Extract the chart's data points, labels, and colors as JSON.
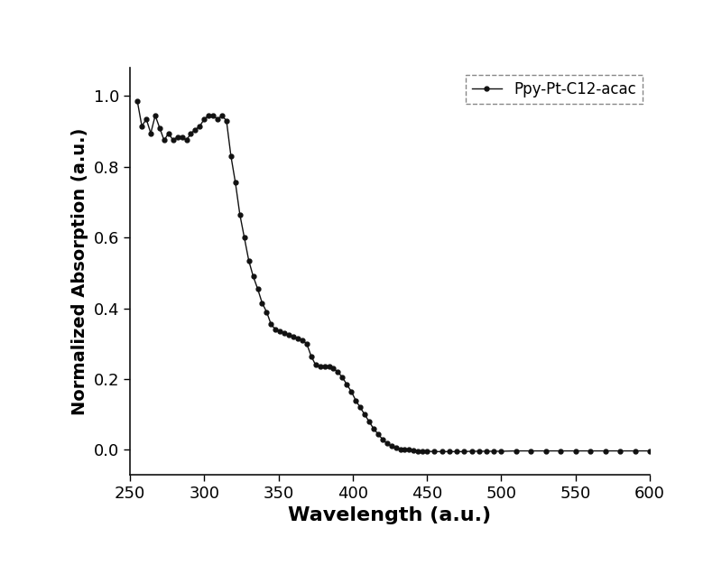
{
  "xlabel": "Wavelength (a.u.)",
  "ylabel": "Normalized Absorption (a.u.)",
  "legend_label": "Ppy-Pt-C12-acac",
  "xlim": [
    250,
    600
  ],
  "ylim": [
    -0.07,
    1.08
  ],
  "xticks": [
    250,
    300,
    350,
    400,
    450,
    500,
    550,
    600
  ],
  "yticks": [
    0.0,
    0.2,
    0.4,
    0.6,
    0.8,
    1.0
  ],
  "line_color": "#111111",
  "marker": "o",
  "markersize": 3.5,
  "linewidth": 1.0,
  "background_color": "#ffffff",
  "xlabel_fontsize": 16,
  "ylabel_fontsize": 14,
  "tick_fontsize": 13,
  "legend_fontsize": 12,
  "wavelengths": [
    255,
    258,
    261,
    264,
    267,
    270,
    273,
    276,
    279,
    282,
    285,
    288,
    291,
    294,
    297,
    300,
    303,
    306,
    309,
    312,
    315,
    318,
    321,
    324,
    327,
    330,
    333,
    336,
    339,
    342,
    345,
    348,
    351,
    354,
    357,
    360,
    363,
    366,
    369,
    372,
    375,
    378,
    381,
    384,
    387,
    390,
    393,
    396,
    399,
    402,
    405,
    408,
    411,
    414,
    417,
    420,
    423,
    426,
    429,
    432,
    435,
    438,
    441,
    444,
    447,
    450,
    455,
    460,
    465,
    470,
    475,
    480,
    485,
    490,
    495,
    500,
    510,
    520,
    530,
    540,
    550,
    560,
    570,
    580,
    590,
    600
  ],
  "absorption": [
    0.985,
    0.915,
    0.935,
    0.895,
    0.945,
    0.91,
    0.875,
    0.895,
    0.875,
    0.885,
    0.885,
    0.875,
    0.895,
    0.905,
    0.915,
    0.935,
    0.945,
    0.945,
    0.935,
    0.945,
    0.93,
    0.83,
    0.755,
    0.665,
    0.6,
    0.535,
    0.49,
    0.455,
    0.415,
    0.39,
    0.355,
    0.34,
    0.335,
    0.33,
    0.325,
    0.32,
    0.315,
    0.31,
    0.3,
    0.265,
    0.24,
    0.235,
    0.235,
    0.235,
    0.23,
    0.22,
    0.205,
    0.185,
    0.165,
    0.14,
    0.12,
    0.1,
    0.08,
    0.06,
    0.045,
    0.03,
    0.018,
    0.01,
    0.005,
    0.002,
    0.001,
    0.0,
    -0.002,
    -0.003,
    -0.004,
    -0.004,
    -0.005,
    -0.005,
    -0.005,
    -0.005,
    -0.005,
    -0.004,
    -0.004,
    -0.004,
    -0.004,
    -0.004,
    -0.003,
    -0.003,
    -0.003,
    -0.003,
    -0.003,
    -0.003,
    -0.003,
    -0.003,
    -0.003,
    -0.003
  ]
}
